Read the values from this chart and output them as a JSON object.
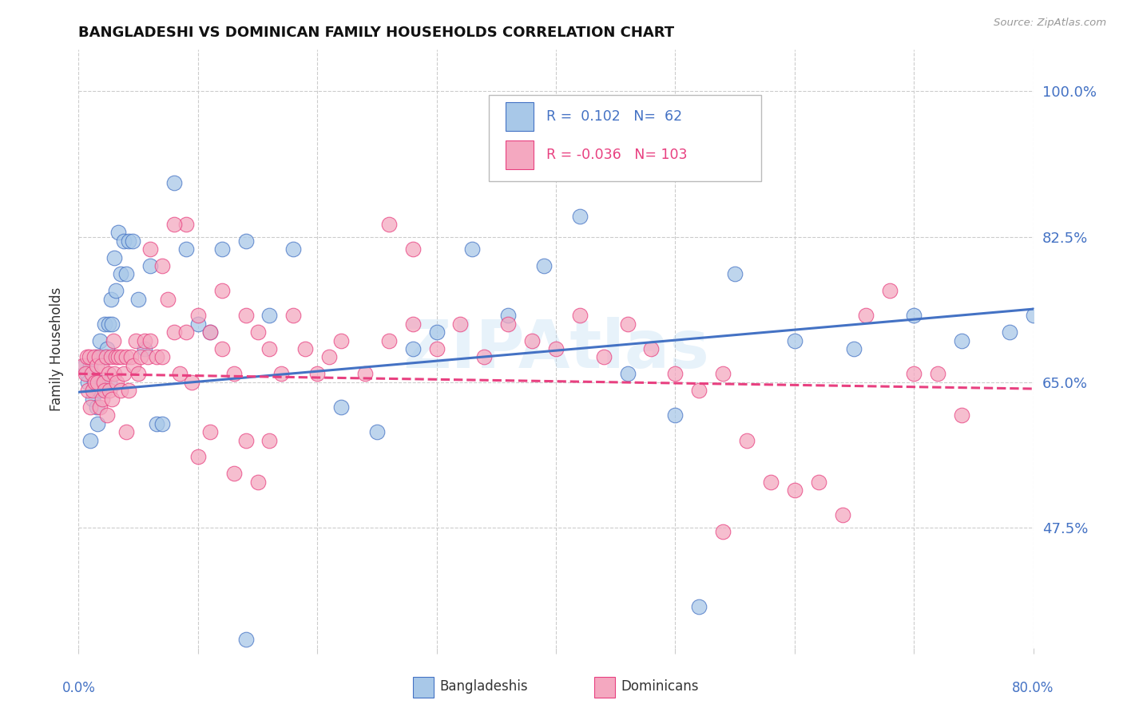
{
  "title": "BANGLADESHI VS DOMINICAN FAMILY HOUSEHOLDS CORRELATION CHART",
  "source": "Source: ZipAtlas.com",
  "ylabel": "Family Households",
  "ytick_labels": [
    "47.5%",
    "65.0%",
    "82.5%",
    "100.0%"
  ],
  "ytick_values": [
    0.475,
    0.65,
    0.825,
    1.0
  ],
  "xlim": [
    0.0,
    0.8
  ],
  "ylim": [
    0.33,
    1.05
  ],
  "xtick_positions": [
    0.0,
    0.1,
    0.2,
    0.3,
    0.4,
    0.5,
    0.6,
    0.7,
    0.8
  ],
  "color_bangladeshi": "#A8C8E8",
  "color_dominican": "#F4A8C0",
  "line_color_bangladeshi": "#4472C4",
  "line_color_dominican": "#E84080",
  "legend_label1": "Bangladeshis",
  "legend_label2": "Dominicans",
  "title_fontsize": 13,
  "bg_color": "#FFFFFF",
  "bang_line_start": 0.638,
  "bang_line_end": 0.738,
  "dom_line_start": 0.66,
  "dom_line_end": 0.642,
  "bangladeshi_x": [
    0.005,
    0.007,
    0.008,
    0.01,
    0.01,
    0.012,
    0.013,
    0.015,
    0.015,
    0.016,
    0.017,
    0.018,
    0.019,
    0.02,
    0.021,
    0.022,
    0.023,
    0.024,
    0.025,
    0.026,
    0.027,
    0.028,
    0.03,
    0.031,
    0.033,
    0.035,
    0.038,
    0.04,
    0.042,
    0.045,
    0.05,
    0.055,
    0.06,
    0.065,
    0.07,
    0.08,
    0.09,
    0.1,
    0.11,
    0.12,
    0.14,
    0.16,
    0.18,
    0.22,
    0.25,
    0.28,
    0.3,
    0.33,
    0.36,
    0.39,
    0.42,
    0.46,
    0.5,
    0.55,
    0.6,
    0.65,
    0.7,
    0.74,
    0.78,
    0.8,
    0.52,
    0.14
  ],
  "bangladeshi_y": [
    0.67,
    0.66,
    0.65,
    0.67,
    0.58,
    0.63,
    0.65,
    0.62,
    0.68,
    0.6,
    0.64,
    0.7,
    0.68,
    0.65,
    0.68,
    0.72,
    0.68,
    0.69,
    0.72,
    0.65,
    0.75,
    0.72,
    0.8,
    0.76,
    0.83,
    0.78,
    0.82,
    0.78,
    0.82,
    0.82,
    0.75,
    0.69,
    0.79,
    0.6,
    0.6,
    0.89,
    0.81,
    0.72,
    0.71,
    0.81,
    0.82,
    0.73,
    0.81,
    0.62,
    0.59,
    0.69,
    0.71,
    0.81,
    0.73,
    0.79,
    0.85,
    0.66,
    0.61,
    0.78,
    0.7,
    0.69,
    0.73,
    0.7,
    0.71,
    0.73,
    0.38,
    0.34
  ],
  "dominican_x": [
    0.004,
    0.006,
    0.007,
    0.008,
    0.009,
    0.01,
    0.011,
    0.012,
    0.013,
    0.014,
    0.015,
    0.016,
    0.017,
    0.018,
    0.019,
    0.02,
    0.021,
    0.022,
    0.023,
    0.024,
    0.025,
    0.026,
    0.027,
    0.028,
    0.029,
    0.03,
    0.031,
    0.032,
    0.033,
    0.035,
    0.036,
    0.038,
    0.04,
    0.042,
    0.044,
    0.046,
    0.048,
    0.05,
    0.052,
    0.055,
    0.058,
    0.06,
    0.065,
    0.07,
    0.075,
    0.08,
    0.085,
    0.09,
    0.095,
    0.1,
    0.11,
    0.12,
    0.13,
    0.14,
    0.15,
    0.16,
    0.17,
    0.18,
    0.19,
    0.2,
    0.21,
    0.22,
    0.24,
    0.26,
    0.28,
    0.3,
    0.32,
    0.34,
    0.36,
    0.38,
    0.4,
    0.42,
    0.44,
    0.46,
    0.48,
    0.5,
    0.52,
    0.54,
    0.56,
    0.58,
    0.6,
    0.62,
    0.64,
    0.66,
    0.68,
    0.7,
    0.72,
    0.74,
    0.54,
    0.26,
    0.28,
    0.09,
    0.1,
    0.11,
    0.12,
    0.06,
    0.07,
    0.08,
    0.13,
    0.14,
    0.15,
    0.16,
    0.04
  ],
  "dominican_y": [
    0.67,
    0.66,
    0.68,
    0.64,
    0.68,
    0.62,
    0.66,
    0.64,
    0.68,
    0.65,
    0.67,
    0.65,
    0.68,
    0.62,
    0.67,
    0.63,
    0.65,
    0.64,
    0.68,
    0.61,
    0.66,
    0.64,
    0.68,
    0.63,
    0.7,
    0.66,
    0.68,
    0.65,
    0.68,
    0.64,
    0.68,
    0.66,
    0.68,
    0.64,
    0.68,
    0.67,
    0.7,
    0.66,
    0.68,
    0.7,
    0.68,
    0.7,
    0.68,
    0.68,
    0.75,
    0.71,
    0.66,
    0.71,
    0.65,
    0.73,
    0.71,
    0.69,
    0.66,
    0.73,
    0.71,
    0.69,
    0.66,
    0.73,
    0.69,
    0.66,
    0.68,
    0.7,
    0.66,
    0.7,
    0.72,
    0.69,
    0.72,
    0.68,
    0.72,
    0.7,
    0.69,
    0.73,
    0.68,
    0.72,
    0.69,
    0.66,
    0.64,
    0.66,
    0.58,
    0.53,
    0.52,
    0.53,
    0.49,
    0.73,
    0.76,
    0.66,
    0.66,
    0.61,
    0.47,
    0.84,
    0.81,
    0.84,
    0.56,
    0.59,
    0.76,
    0.81,
    0.79,
    0.84,
    0.54,
    0.58,
    0.53,
    0.58,
    0.59
  ]
}
